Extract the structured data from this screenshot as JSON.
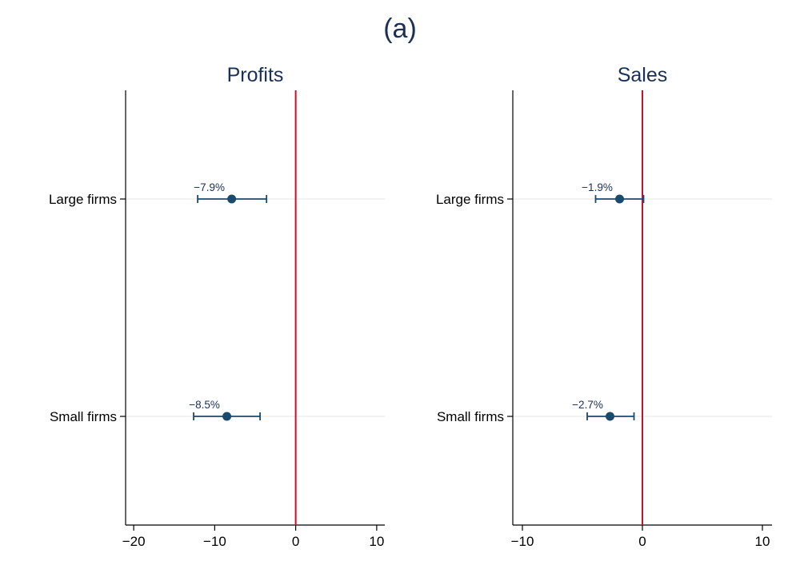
{
  "figure": {
    "title": "(a)"
  },
  "colors": {
    "title": "#1a3055",
    "marker": "#1a4a6e",
    "reference_line": "#c8102e",
    "axis": "#000000",
    "gridline": "#e6e6e6",
    "label": "#1a3055"
  },
  "chart_data": [
    {
      "type": "scatter",
      "title": "Profits",
      "xlabel": "",
      "ylabel": "",
      "categories": [
        "Large firms",
        "Small firms"
      ],
      "estimates": [
        -7.9,
        -8.5
      ],
      "ci_low": [
        -12.1,
        -12.6
      ],
      "ci_high": [
        -3.6,
        -4.4
      ],
      "data_labels": [
        "−7.9%",
        "−8.5%"
      ],
      "xlim": [
        -21,
        11
      ],
      "xticks": [
        -20,
        -10,
        0,
        10
      ],
      "xtick_labels": [
        "−20",
        "−10",
        "0",
        "10"
      ],
      "reference_line": 0,
      "grid": "horizontal"
    },
    {
      "type": "scatter",
      "title": "Sales",
      "xlabel": "",
      "ylabel": "",
      "categories": [
        "Large firms",
        "Small firms"
      ],
      "estimates": [
        -1.9,
        -2.7
      ],
      "ci_low": [
        -3.9,
        -4.6
      ],
      "ci_high": [
        0.1,
        -0.7
      ],
      "data_labels": [
        "−1.9%",
        "−2.7%"
      ],
      "xlim": [
        -10.8,
        10.8
      ],
      "xticks": [
        -10,
        0,
        10
      ],
      "xtick_labels": [
        "−10",
        "0",
        "10"
      ],
      "reference_line": 0,
      "grid": "horizontal"
    }
  ]
}
